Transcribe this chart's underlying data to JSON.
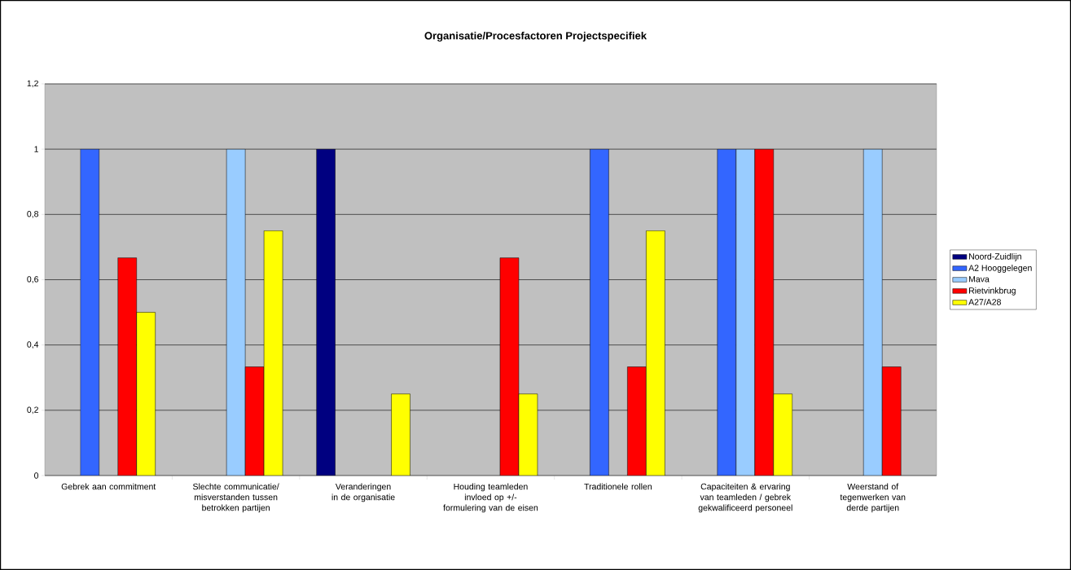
{
  "chart_data": {
    "type": "bar",
    "title": "Organisatie/Procesfactoren Projectspecifiek",
    "categories": [
      "Gebrek aan commitment",
      "Slechte communicatie/ misverstanden tussen betrokken partijen",
      "Veranderingen in de organisatie",
      "Houding teamleden invloed op +/- formulering van de eisen",
      "Traditionele rollen",
      "Capaciteiten & ervaring van teamleden / gebrek gekwalificeerd personeel",
      "Weerstand of tegenwerken van derde partijen"
    ],
    "series": [
      {
        "name": "Noord-Zuidlijn",
        "color": "#000080",
        "values": [
          null,
          null,
          1,
          null,
          null,
          null,
          null
        ]
      },
      {
        "name": "A2 Hooggelegen",
        "color": "#3366ff",
        "values": [
          1,
          null,
          null,
          null,
          1,
          1,
          null
        ]
      },
      {
        "name": "Mava",
        "color": "#99ccff",
        "values": [
          null,
          1,
          null,
          null,
          null,
          1,
          1
        ]
      },
      {
        "name": "Rietvinkbrug",
        "color": "#ff0000",
        "values": [
          0.667,
          0.333,
          null,
          0.667,
          0.333,
          1,
          0.333
        ]
      },
      {
        "name": "A27/A28",
        "color": "#ffff00",
        "values": [
          0.5,
          0.75,
          0.25,
          0.25,
          0.75,
          0.25,
          null
        ]
      }
    ],
    "ylim": [
      0,
      1.2
    ],
    "yticks": [
      0,
      {
        "value": 0.2,
        "label": "0,2"
      },
      {
        "value": 0.4,
        "label": "0,4"
      },
      {
        "value": 0.6,
        "label": "0,6"
      },
      {
        "value": 0.8,
        "label": "0,8"
      },
      1,
      {
        "value": 1.2,
        "label": "1,2"
      }
    ],
    "grid": "y",
    "legend": "right"
  }
}
